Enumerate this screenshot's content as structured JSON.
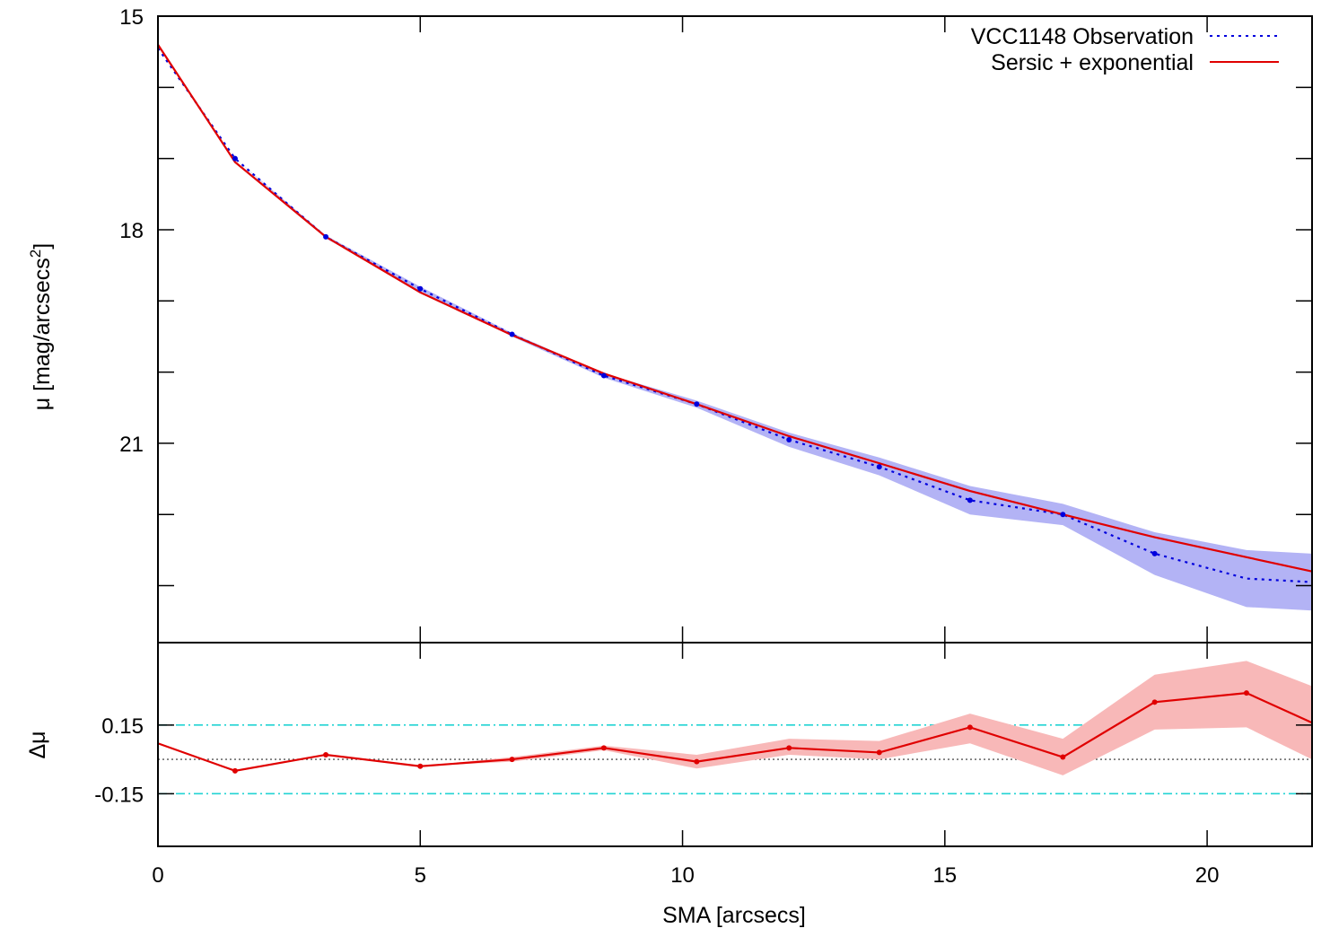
{
  "chart_data": [
    {
      "type": "line",
      "panel": "upper",
      "xlabel": "",
      "ylabel": "μ [mag/arcsecs",
      "ylabel_sup": "2",
      "ylabel_close": "]",
      "y_inverted": true,
      "xlim": [
        0,
        22
      ],
      "ylim": [
        15,
        23.8
      ],
      "yticks": [
        15,
        18,
        21
      ],
      "ytick_labels": [
        "15",
        "18",
        "21"
      ],
      "y_minor_ticks": [
        16,
        17,
        19,
        20,
        22,
        23
      ],
      "x": [
        0,
        1.47,
        3.2,
        5.0,
        6.75,
        8.5,
        10.27,
        12.03,
        13.75,
        15.48,
        17.25,
        19.0,
        20.75,
        22.0
      ],
      "legend": {
        "position": "top-right"
      },
      "series": [
        {
          "name": "VCC1148 Observation",
          "style": "dotted",
          "color": "#0000dd",
          "band_color": "#b3b3f5",
          "values": [
            15.45,
            17.0,
            18.1,
            18.83,
            19.47,
            20.05,
            20.45,
            20.95,
            21.33,
            21.8,
            22.0,
            22.55,
            22.9,
            22.95
          ],
          "lower": [
            15.45,
            17.0,
            18.08,
            18.8,
            19.45,
            20.02,
            20.4,
            20.85,
            21.2,
            21.6,
            21.85,
            22.25,
            22.5,
            22.55
          ],
          "upper": [
            15.45,
            17.0,
            18.12,
            18.86,
            19.5,
            20.08,
            20.5,
            21.05,
            21.45,
            22.0,
            22.15,
            22.85,
            23.3,
            23.35
          ]
        },
        {
          "name": "Sersic + exponential",
          "style": "solid",
          "color": "#e00000",
          "values": [
            15.4,
            17.05,
            18.1,
            18.88,
            19.48,
            20.02,
            20.45,
            20.9,
            21.28,
            21.67,
            22.0,
            22.32,
            22.6,
            22.8
          ]
        }
      ]
    },
    {
      "type": "line",
      "panel": "lower",
      "xlabel": "SMA [arcsecs]",
      "ylabel": "Δμ",
      "xlim": [
        0,
        22
      ],
      "ylim": [
        -0.38,
        0.51
      ],
      "xticks": [
        0,
        5,
        10,
        15,
        20
      ],
      "xtick_labels": [
        "0",
        "5",
        "10",
        "15",
        "20"
      ],
      "yticks": [
        0.15,
        -0.15
      ],
      "ytick_labels": [
        "0.15",
        "-0.15"
      ],
      "reference_lines": [
        {
          "y": 0.15,
          "style": "dash-dot",
          "color": "#22d3d3"
        },
        {
          "y": -0.15,
          "style": "dash-dot",
          "color": "#22d3d3"
        },
        {
          "y": 0.0,
          "style": "dotted",
          "color": "#555555"
        }
      ],
      "x": [
        0,
        1.47,
        3.2,
        5.0,
        6.75,
        8.5,
        10.27,
        12.03,
        13.75,
        15.48,
        17.25,
        19.0,
        20.75,
        22.0
      ],
      "series": [
        {
          "name": "",
          "style": "solid",
          "color": "#e00000",
          "band_color": "#f8b8b8",
          "values": [
            0.07,
            -0.05,
            0.02,
            -0.03,
            0.0,
            0.05,
            -0.01,
            0.05,
            0.03,
            0.14,
            0.01,
            0.25,
            0.29,
            0.16
          ],
          "lower": [
            0.07,
            -0.05,
            0.02,
            -0.03,
            -0.01,
            0.04,
            -0.04,
            0.02,
            0.0,
            0.07,
            -0.07,
            0.13,
            0.14,
            0.0
          ],
          "upper": [
            0.07,
            -0.05,
            0.02,
            -0.03,
            0.01,
            0.06,
            0.02,
            0.09,
            0.08,
            0.2,
            0.09,
            0.37,
            0.43,
            0.32
          ]
        }
      ]
    }
  ]
}
